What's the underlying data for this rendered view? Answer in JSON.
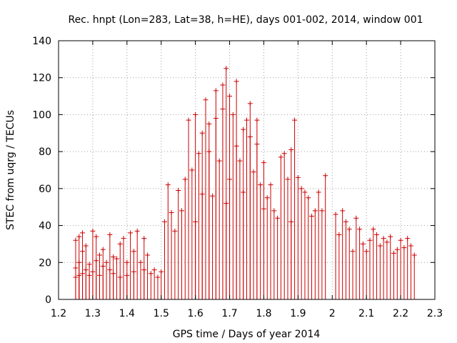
{
  "chart_data": {
    "type": "scatter",
    "title": "Rec. hnpt (Lon=283, Lat=38, h=HE), days 001-002, 2014, window 001",
    "xlabel": "GPS time / Days of year 2014",
    "ylabel": "STEC from uqrg / TECUs",
    "xlim": [
      1.2,
      2.3
    ],
    "ylim": [
      0,
      140
    ],
    "xticks": [
      "1.2",
      "1.3",
      "1.4",
      "1.5",
      "1.6",
      "1.7",
      "1.8",
      "1.9",
      "2",
      "2.1",
      "2.2",
      "2.3"
    ],
    "yticks": [
      "0",
      "20",
      "40",
      "60",
      "80",
      "100",
      "120",
      "140"
    ],
    "grid": true,
    "series_color": "#cc0000",
    "error_bars_extend_to": 0,
    "series": [
      {
        "name": "STEC",
        "x": [
          1.25,
          1.25,
          1.25,
          1.26,
          1.26,
          1.26,
          1.27,
          1.27,
          1.27,
          1.28,
          1.28,
          1.29,
          1.29,
          1.3,
          1.3,
          1.31,
          1.31,
          1.32,
          1.32,
          1.33,
          1.33,
          1.34,
          1.35,
          1.35,
          1.36,
          1.36,
          1.37,
          1.38,
          1.38,
          1.39,
          1.4,
          1.4,
          1.41,
          1.42,
          1.42,
          1.43,
          1.44,
          1.45,
          1.45,
          1.46,
          1.47,
          1.48,
          1.49,
          1.5,
          1.51,
          1.52,
          1.53,
          1.54,
          1.55,
          1.56,
          1.57,
          1.58,
          1.59,
          1.6,
          1.6,
          1.61,
          1.62,
          1.62,
          1.63,
          1.64,
          1.64,
          1.65,
          1.66,
          1.66,
          1.67,
          1.68,
          1.68,
          1.69,
          1.69,
          1.7,
          1.7,
          1.71,
          1.72,
          1.72,
          1.73,
          1.74,
          1.74,
          1.75,
          1.76,
          1.76,
          1.77,
          1.78,
          1.78,
          1.79,
          1.8,
          1.8,
          1.81,
          1.82,
          1.83,
          1.84,
          1.85,
          1.86,
          1.87,
          1.88,
          1.88,
          1.89,
          1.9,
          1.91,
          1.92,
          1.93,
          1.94,
          1.95,
          1.96,
          1.97,
          1.98,
          2.01,
          2.02,
          2.03,
          2.04,
          2.05,
          2.06,
          2.07,
          2.08,
          2.09,
          2.1,
          2.11,
          2.12,
          2.13,
          2.14,
          2.15,
          2.16,
          2.17,
          2.18,
          2.19,
          2.2,
          2.21,
          2.22,
          2.23,
          2.24
        ],
        "y": [
          32,
          17,
          12,
          34,
          20,
          13,
          36,
          26,
          14,
          29,
          16,
          19,
          13,
          37,
          15,
          34,
          21,
          24,
          13,
          27,
          18,
          20,
          16,
          35,
          23,
          14,
          22,
          30,
          12,
          33,
          20,
          13,
          36,
          26,
          15,
          37,
          20,
          16,
          33,
          24,
          14,
          16,
          12,
          15,
          42,
          62,
          47,
          37,
          59,
          48,
          65,
          97,
          70,
          42,
          100,
          79,
          90,
          57,
          108,
          80,
          95,
          56,
          113,
          98,
          75,
          116,
          103,
          52,
          125,
          65,
          110,
          100,
          83,
          118,
          75,
          92,
          58,
          97,
          106,
          88,
          69,
          84,
          97,
          62,
          74,
          49,
          55,
          62,
          48,
          44,
          77,
          79,
          65,
          81,
          42,
          97,
          66,
          60,
          58,
          55,
          45,
          48,
          58,
          48,
          67,
          46,
          35,
          48,
          42,
          38,
          26,
          44,
          38,
          30,
          26,
          32,
          38,
          35,
          29,
          33,
          31,
          34,
          25,
          27,
          32,
          28,
          33,
          29,
          24
        ]
      }
    ]
  }
}
